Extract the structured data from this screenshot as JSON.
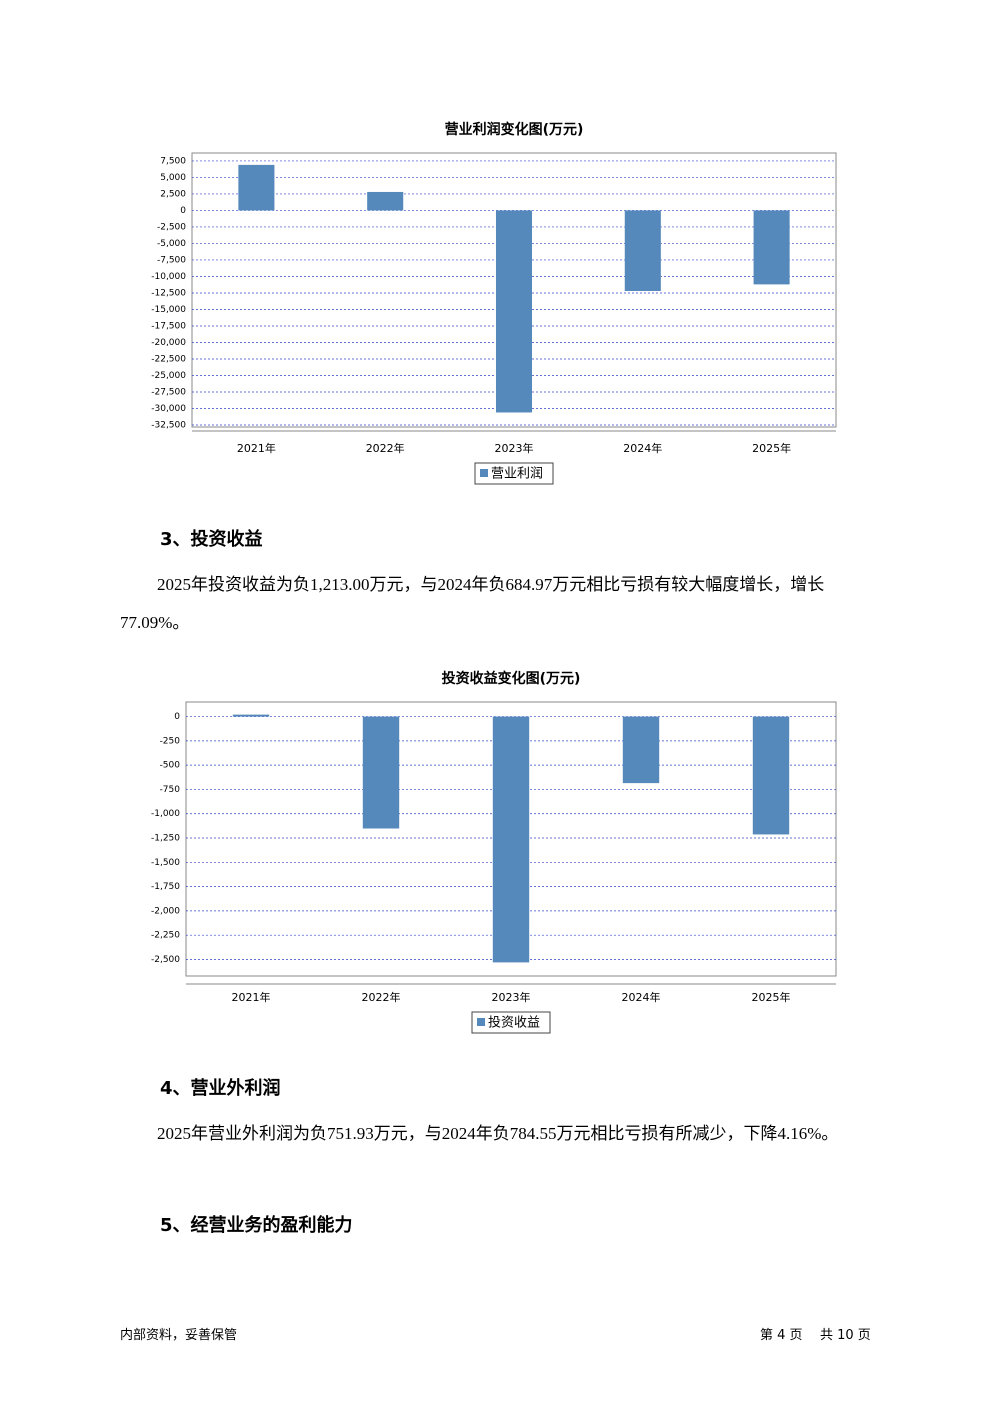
{
  "chart_data": [
    {
      "type": "bar",
      "title": "营业利润变化图(万元)",
      "categories": [
        "2021年",
        "2022年",
        "2023年",
        "2024年",
        "2025年"
      ],
      "series": [
        {
          "name": "营业利润",
          "color": "#5588bb",
          "values": [
            6900,
            2800,
            -30600,
            -12200,
            -11200
          ]
        }
      ],
      "ylim": [
        -32800,
        8700
      ],
      "yticks": [
        {
          "value": 7500,
          "label": "7,500"
        },
        {
          "value": 5000,
          "label": "5,000"
        },
        {
          "value": 2500,
          "label": "2,500"
        },
        0,
        {
          "value": -2500,
          "label": "-2,500"
        },
        {
          "value": -5000,
          "label": "-5,000"
        },
        {
          "value": -7500,
          "label": "-7,500"
        },
        {
          "value": -10000,
          "label": "-10,000"
        },
        {
          "value": -12500,
          "label": "-12,500"
        },
        {
          "value": -15000,
          "label": "-15,000"
        },
        {
          "value": -17500,
          "label": "-17,500"
        },
        {
          "value": -20000,
          "label": "-20,000"
        },
        {
          "value": -22500,
          "label": "-22,500"
        },
        {
          "value": -25000,
          "label": "-25,000"
        },
        {
          "value": -27500,
          "label": "-27,500"
        },
        {
          "value": -30000,
          "label": "-30,000"
        },
        {
          "value": -32500,
          "label": "-32,500"
        }
      ],
      "grid": true,
      "legend": "bottom"
    },
    {
      "type": "bar",
      "title": "投资收益变化图(万元)",
      "categories": [
        "2021年",
        "2022年",
        "2023年",
        "2024年",
        "2025年"
      ],
      "series": [
        {
          "name": "投资收益",
          "color": "#5588bb",
          "values": [
            20,
            -1152,
            -2530,
            -684.97,
            -1213
          ]
        }
      ],
      "ylim": [
        -2670,
        150
      ],
      "yticks": [
        0,
        -250,
        -500,
        -750,
        {
          "value": -1000,
          "label": "-1,000"
        },
        {
          "value": -1250,
          "label": "-1,250"
        },
        {
          "value": -1500,
          "label": "-1,500"
        },
        {
          "value": -1750,
          "label": "-1,750"
        },
        {
          "value": -2000,
          "label": "-2,000"
        },
        {
          "value": -2250,
          "label": "-2,250"
        },
        {
          "value": -2500,
          "label": "-2,500"
        }
      ],
      "grid": true,
      "legend": "bottom"
    }
  ],
  "sections": [
    {
      "heading": "3、投资收益",
      "paragraph": "2025年投资收益为负1,213.00万元，与2024年负684.97万元相比亏损有较大幅度增长，增长77.09%。"
    },
    {
      "heading": "4、营业外利润",
      "paragraph": "2025年营业外利润为负751.93万元，与2024年负784.55万元相比亏损有所减少，下降4.16%。"
    },
    {
      "heading": "5、经营业务的盈利能力"
    }
  ],
  "footer": {
    "left": "内部资料，妥善保管",
    "page": "第 4 页",
    "total": "共 10 页"
  }
}
